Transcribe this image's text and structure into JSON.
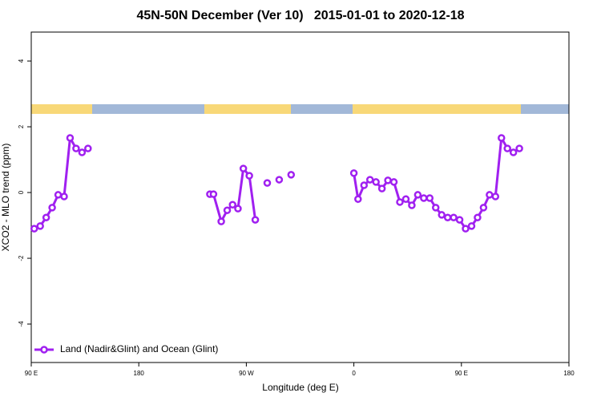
{
  "chart_data": {
    "type": "line",
    "title": "45N-50N December (Ver 10)   2015-01-01 to 2020-12-18",
    "xlabel": "Longitude (deg E)",
    "ylabel": "XCO2 - MLO trend (ppm)",
    "xlim": [
      90,
      540
    ],
    "ylim": [
      -5.17,
      4.88
    ],
    "xticks": [
      {
        "value": 90,
        "label": "90 E"
      },
      {
        "value": 180,
        "label": "180"
      },
      {
        "value": 270,
        "label": "90 W"
      },
      {
        "value": 360,
        "label": "0"
      },
      {
        "value": 450,
        "label": "90 E"
      },
      {
        "value": 540,
        "label": "180"
      }
    ],
    "yticks": [
      -4,
      -2,
      0,
      2,
      4
    ],
    "grid": false,
    "legend": "bottomleft",
    "x": [
      92.5,
      97.5,
      102.5,
      107.5,
      112.5,
      117.5,
      122.5,
      127.5,
      132.5,
      137.5,
      null,
      239.5,
      242.5,
      249,
      254,
      258.5,
      263,
      267.5,
      272.5,
      277.5,
      null,
      287.5,
      null,
      297.5,
      null,
      307.5,
      null,
      360,
      363.5,
      368.5,
      373.5,
      378.5,
      383.5,
      388.5,
      393.5,
      398.5,
      403.5,
      408.5,
      413.5,
      418.5,
      423.5,
      428.5,
      433.5,
      438.5,
      443.5,
      448.5,
      453.5,
      458.5,
      463.5,
      468.5,
      473.5,
      478.5,
      483.5,
      488.5,
      493.5,
      498.5
    ],
    "series": [
      {
        "name": "Land (Nadir&Glint) and Ocean (Glint)",
        "color": "#a020f0",
        "values": [
          -1.1,
          -1.02,
          -0.76,
          -0.46,
          -0.07,
          -0.12,
          1.66,
          1.34,
          1.22,
          1.34,
          null,
          -0.05,
          -0.05,
          -0.88,
          -0.54,
          -0.37,
          -0.49,
          0.73,
          0.51,
          -0.83,
          null,
          0.29,
          null,
          0.39,
          null,
          0.54,
          null,
          0.59,
          -0.2,
          0.22,
          0.39,
          0.32,
          0.12,
          0.37,
          0.32,
          -0.29,
          -0.2,
          -0.39,
          -0.07,
          -0.17,
          -0.17,
          -0.46,
          -0.68,
          -0.76,
          -0.76,
          -0.83,
          -1.1,
          -1.02,
          -0.76,
          -0.46,
          -0.07,
          -0.12,
          1.66,
          1.34,
          1.22,
          1.34
        ]
      }
    ]
  }
}
